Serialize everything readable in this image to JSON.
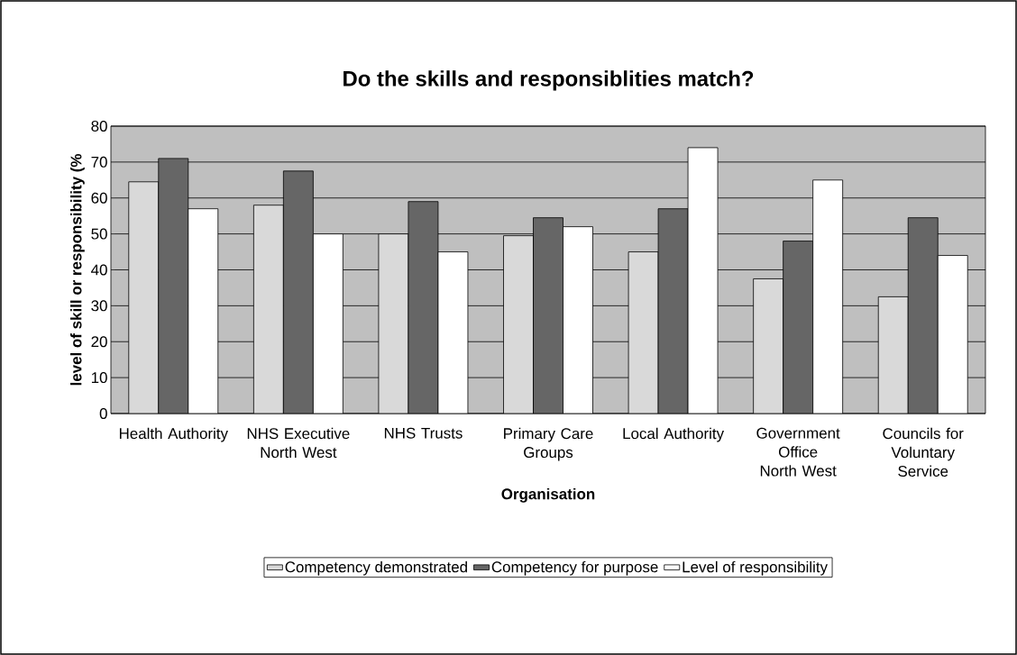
{
  "chart_data": {
    "type": "bar",
    "title": "Do the skills and responsiblities match?",
    "xlabel": "Organisation",
    "ylabel": "level of skill or responsibility (%",
    "categories": [
      "Health Authority",
      "NHS Executive North West",
      "NHS Trusts",
      "Primary Care Groups",
      "Local Authority",
      "Government Office North West",
      "Councils for Voluntary Service"
    ],
    "series": [
      {
        "name": "Competency demonstrated",
        "color": "#d9d9d9",
        "values": [
          64.5,
          58,
          50,
          49.5,
          45,
          37.5,
          32.5
        ]
      },
      {
        "name": "Competency for purpose",
        "color": "#666666",
        "values": [
          71,
          67.5,
          59,
          54.5,
          57,
          48,
          54.5
        ]
      },
      {
        "name": "Level of responsibility",
        "color": "#ffffff",
        "values": [
          57,
          50,
          45,
          52,
          74,
          65,
          44
        ]
      }
    ],
    "ylim": [
      0,
      80
    ],
    "yticks": [
      0,
      10,
      20,
      30,
      40,
      50,
      60,
      70,
      80
    ],
    "grid": "y",
    "legend": "bottom"
  }
}
